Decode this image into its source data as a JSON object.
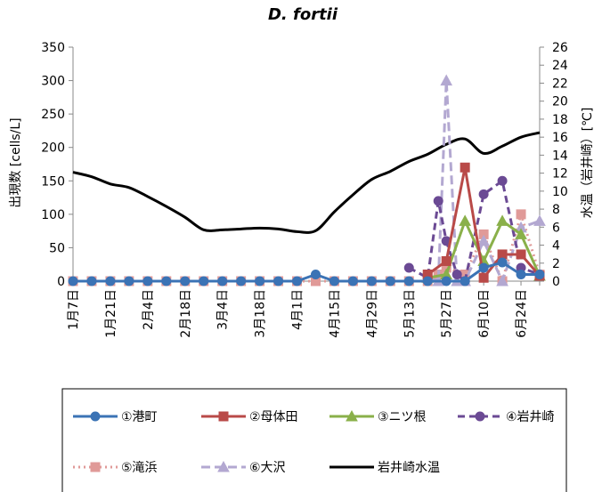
{
  "chart_data": {
    "type": "line",
    "title": "D. fortii",
    "ylabel": "出現数 [cells/L]",
    "y2label": "水温（岩井崎）[℃]",
    "ylim": [
      0,
      350
    ],
    "y2lim": [
      0,
      26
    ],
    "yticks": [
      0,
      50,
      100,
      150,
      200,
      250,
      300,
      350
    ],
    "y2ticks": [
      0,
      2,
      4,
      6,
      8,
      10,
      12,
      14,
      16,
      18,
      20,
      22,
      24,
      26
    ],
    "x_tick_labels": [
      "1月7日",
      "1月21日",
      "2月4日",
      "2月18日",
      "3月4日",
      "3月18日",
      "4月1日",
      "4月15日",
      "4月29日",
      "5月13日",
      "5月27日",
      "6月10日",
      "6月24日"
    ],
    "x_range_days": [
      7,
      182
    ],
    "legend_position": "bottom",
    "series": [
      {
        "name": "①港町",
        "axis": "left",
        "color": "#3b73b5",
        "marker": "circle",
        "dash": "",
        "x": [
          7,
          14,
          21,
          28,
          35,
          42,
          49,
          56,
          63,
          70,
          77,
          84,
          91,
          98,
          105,
          112,
          119,
          126,
          133,
          140,
          147,
          154,
          161,
          168,
          175,
          182
        ],
        "y": [
          0,
          0,
          0,
          0,
          0,
          0,
          0,
          0,
          0,
          0,
          0,
          0,
          0,
          10,
          0,
          0,
          0,
          0,
          0,
          0,
          0,
          0,
          20,
          28,
          10,
          10
        ]
      },
      {
        "name": "②母体田",
        "axis": "left",
        "color": "#b94a48",
        "marker": "square",
        "dash": "",
        "x": [
          140,
          147,
          154,
          161,
          168,
          175,
          182
        ],
        "y": [
          10,
          30,
          170,
          5,
          40,
          40,
          8
        ]
      },
      {
        "name": "③ニツ根",
        "axis": "left",
        "color": "#8ab04a",
        "marker": "triangle",
        "dash": "",
        "x": [
          140,
          147,
          154,
          161,
          168,
          175,
          182
        ],
        "y": [
          5,
          10,
          90,
          30,
          90,
          70,
          8
        ]
      },
      {
        "name": "④岩井崎",
        "axis": "left",
        "color": "#6b4a94",
        "marker": "circle",
        "dash": "8,5",
        "x": [
          133,
          140,
          144,
          147,
          151,
          154,
          161,
          168,
          175,
          182
        ],
        "y": [
          20,
          5,
          120,
          60,
          10,
          0,
          130,
          150,
          20,
          10
        ]
      },
      {
        "name": "⑤滝浜",
        "axis": "left",
        "color": "#e09a98",
        "marker": "square",
        "dash": "2,4",
        "x": [
          7,
          14,
          21,
          28,
          35,
          42,
          49,
          56,
          63,
          70,
          77,
          84,
          91,
          98,
          105,
          112,
          119,
          126,
          133,
          140,
          144,
          147,
          154,
          161,
          168,
          175,
          182
        ],
        "y": [
          0,
          0,
          0,
          0,
          0,
          0,
          0,
          0,
          0,
          0,
          0,
          0,
          0,
          0,
          0,
          0,
          0,
          0,
          0,
          0,
          10,
          20,
          10,
          70,
          0,
          100,
          10
        ]
      },
      {
        "name": "⑥大沢",
        "axis": "left",
        "color": "#b3a8d1",
        "marker": "triangle",
        "dash": "10,5",
        "x": [
          140,
          144,
          147,
          151,
          154,
          161,
          168,
          175,
          182
        ],
        "y": [
          5,
          0,
          300,
          0,
          0,
          60,
          0,
          80,
          90
        ]
      },
      {
        "name": "岩井崎水温",
        "axis": "right",
        "color": "#000000",
        "marker": "none",
        "dash": "",
        "x": [
          7,
          14,
          21,
          28,
          35,
          42,
          49,
          56,
          63,
          70,
          77,
          84,
          91,
          98,
          105,
          112,
          119,
          126,
          133,
          140,
          147,
          154,
          161,
          168,
          175,
          182
        ],
        "y": [
          12.1,
          11.6,
          10.8,
          10.4,
          9.4,
          8.3,
          7.1,
          5.7,
          5.7,
          5.8,
          5.9,
          5.8,
          5.5,
          5.6,
          7.7,
          9.6,
          11.3,
          12.2,
          13.3,
          14.1,
          15.2,
          15.8,
          14.2,
          15.0,
          16.0,
          16.5
        ]
      }
    ]
  }
}
